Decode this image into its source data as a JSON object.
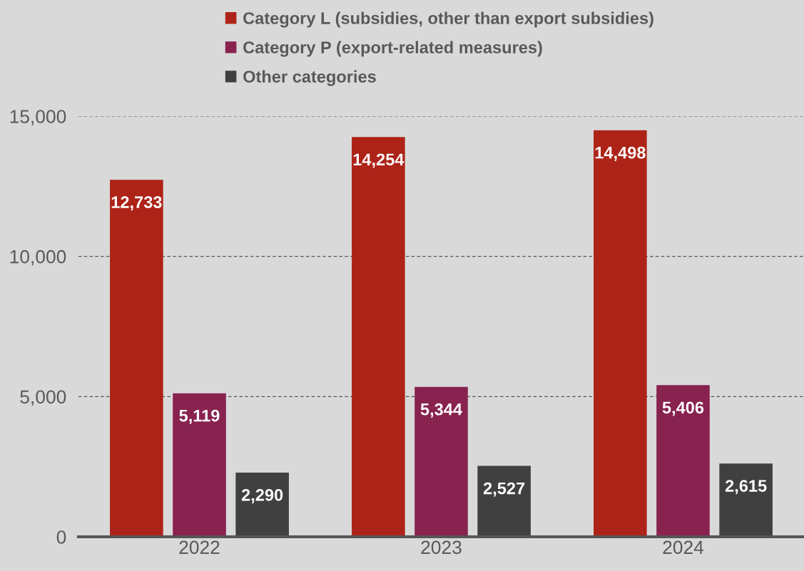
{
  "chart_data": {
    "type": "bar",
    "categories": [
      "2022",
      "2023",
      "2024"
    ],
    "series": [
      {
        "name": "Category L (subsidies, other than export subsidies)",
        "color": "#ad2317",
        "values": [
          12733,
          14254,
          14498
        ],
        "value_labels": [
          "12,733",
          "14,254",
          "14,498"
        ]
      },
      {
        "name": "Category P (export-related measures)",
        "color": "#88224f",
        "values": [
          5119,
          5344,
          5406
        ],
        "value_labels": [
          "5,119",
          "5,344",
          "5,406"
        ]
      },
      {
        "name": "Other categories",
        "color": "#404040",
        "values": [
          2290,
          2527,
          2615
        ],
        "value_labels": [
          "2,290",
          "2,527",
          "2,615"
        ]
      }
    ],
    "ylim": [
      0,
      15000
    ],
    "yticks": [
      0,
      {
        "value": 5000,
        "label": "5,000"
      },
      {
        "value": 10000,
        "label": "10,000"
      },
      {
        "value": 15000,
        "label": "15,000"
      }
    ],
    "grid": "y",
    "legend": "top"
  }
}
